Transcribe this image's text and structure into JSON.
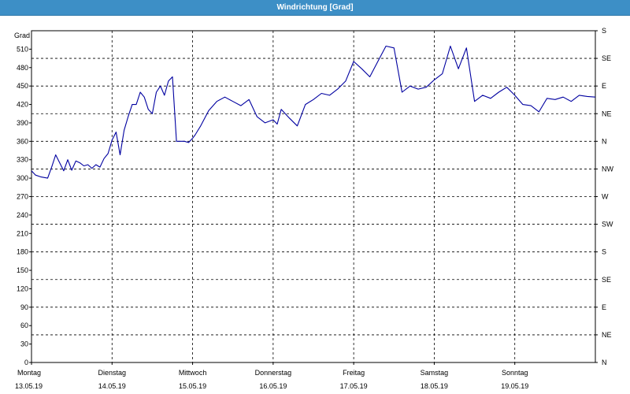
{
  "window": {
    "title": "Windrichtung [Grad]"
  },
  "chart_data": {
    "type": "line",
    "title": "Windrichtung [Grad]",
    "ylabel": "Grad",
    "ylim": [
      0,
      540
    ],
    "yticks": [
      0,
      30,
      60,
      90,
      120,
      150,
      180,
      210,
      240,
      270,
      300,
      330,
      360,
      390,
      420,
      450,
      480,
      510
    ],
    "right_axis_labels": [
      "N",
      "NE",
      "E",
      "SE",
      "S",
      "SW",
      "W",
      "NW",
      "N",
      "NE",
      "E",
      "SE",
      "S"
    ],
    "right_axis_values": [
      0,
      45,
      90,
      135,
      180,
      225,
      270,
      315,
      360,
      405,
      450,
      495,
      540
    ],
    "x_categories": [
      {
        "day": "Montag",
        "date": "13.05.19"
      },
      {
        "day": "Dienstag",
        "date": "14.05.19"
      },
      {
        "day": "Mittwoch",
        "date": "15.05.19"
      },
      {
        "day": "Donnerstag",
        "date": "16.05.19"
      },
      {
        "day": "Freitag",
        "date": "17.05.19"
      },
      {
        "day": "Samstag",
        "date": "18.05.19"
      },
      {
        "day": "Sonntag",
        "date": "19.05.19"
      }
    ],
    "xlim": [
      0,
      7
    ],
    "grid": true,
    "line_color": "#0000a0",
    "series": [
      {
        "x": [
          0.0,
          0.05,
          0.12,
          0.2,
          0.25,
          0.3,
          0.35,
          0.4,
          0.45,
          0.5,
          0.55,
          0.6,
          0.65,
          0.7,
          0.75,
          0.8,
          0.85,
          0.9,
          0.95,
          1.0,
          1.05,
          1.1,
          1.15,
          1.2,
          1.25,
          1.3,
          1.35,
          1.4,
          1.45,
          1.5,
          1.55,
          1.6,
          1.65,
          1.7,
          1.75,
          1.8,
          1.85,
          1.9,
          1.95,
          2.0,
          2.03,
          2.1,
          2.2,
          2.3,
          2.4,
          2.5,
          2.6,
          2.7,
          2.8,
          2.9,
          3.0,
          3.05,
          3.1,
          3.2,
          3.3,
          3.4,
          3.5,
          3.6,
          3.7,
          3.8,
          3.9,
          4.0,
          4.1,
          4.2,
          4.3,
          4.4,
          4.5,
          4.6,
          4.7,
          4.8,
          4.9,
          5.0,
          5.1,
          5.2,
          5.3,
          5.4,
          5.5,
          5.6,
          5.7,
          5.8,
          5.9,
          6.0,
          6.1,
          6.2,
          6.3,
          6.4,
          6.5,
          6.6,
          6.7,
          6.8,
          6.9,
          7.0
        ],
        "y": [
          312,
          305,
          302,
          300,
          318,
          338,
          325,
          312,
          330,
          313,
          328,
          325,
          320,
          322,
          316,
          322,
          318,
          332,
          340,
          362,
          375,
          338,
          378,
          400,
          420,
          420,
          440,
          432,
          412,
          405,
          440,
          450,
          435,
          458,
          465,
          360,
          360,
          360,
          358,
          365,
          370,
          385,
          410,
          425,
          432,
          425,
          418,
          428,
          400,
          390,
          395,
          388,
          412,
          398,
          385,
          420,
          428,
          438,
          435,
          445,
          458,
          490,
          478,
          465,
          490,
          515,
          512,
          440,
          450,
          445,
          448,
          460,
          470,
          515,
          478,
          512,
          425,
          435,
          430,
          440,
          448,
          435,
          420,
          418,
          408,
          430,
          428,
          432,
          425,
          435,
          433,
          432
        ]
      }
    ]
  }
}
